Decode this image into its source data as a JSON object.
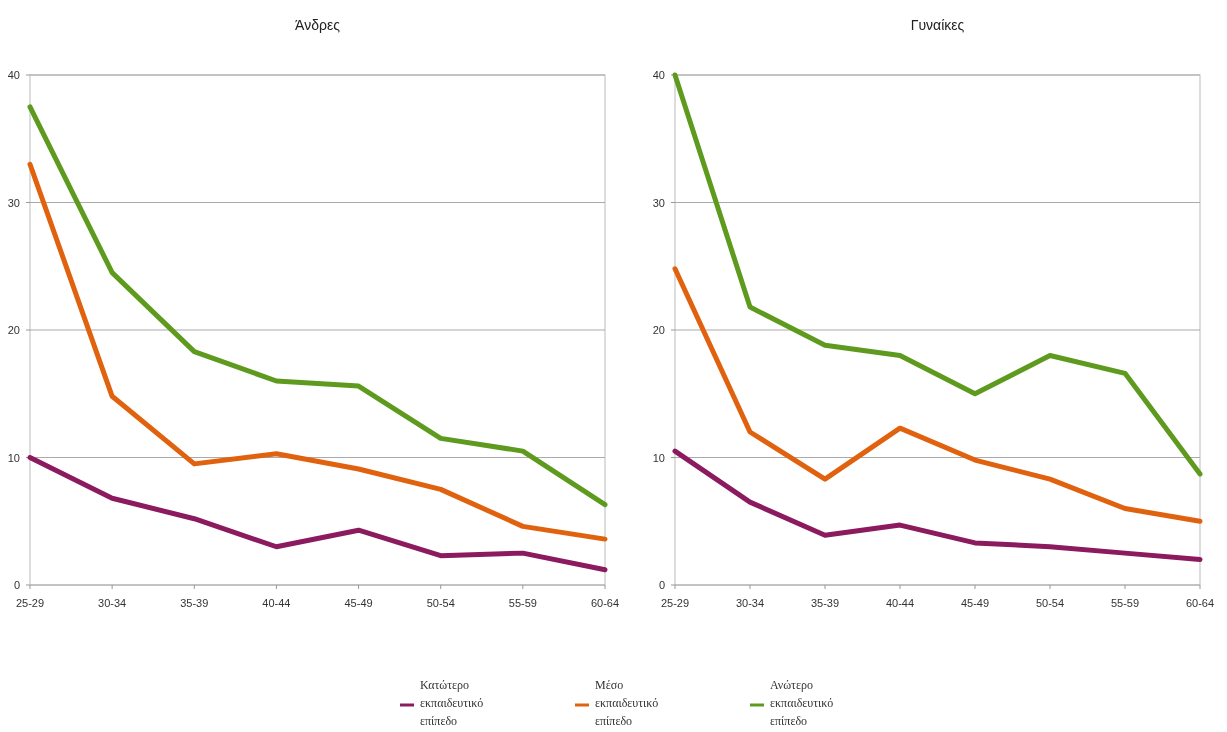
{
  "chart_data": [
    {
      "type": "line",
      "title": "Άνδρες",
      "categories": [
        "25-29",
        "30-34",
        "35-39",
        "40-44",
        "45-49",
        "50-54",
        "55-59",
        "60-64"
      ],
      "ylim": [
        0,
        40
      ],
      "yticks": [
        0,
        10,
        20,
        30,
        40
      ],
      "grid": "y",
      "series": [
        {
          "color": "#8b1a5e",
          "values": [
            10,
            6.8,
            5.2,
            3,
            4.3,
            2.3,
            2.5,
            1.2
          ]
        },
        {
          "color": "#e0620f",
          "values": [
            33,
            14.8,
            9.5,
            10.3,
            9.1,
            7.5,
            4.6,
            3.6
          ]
        },
        {
          "color": "#5e9a1e",
          "values": [
            37.5,
            24.5,
            18.3,
            16,
            15.6,
            11.5,
            10.5,
            6.3
          ]
        }
      ]
    },
    {
      "type": "line",
      "title": "Γυναίκες",
      "categories": [
        "25-29",
        "30-34",
        "35-39",
        "40-44",
        "45-49",
        "50-54",
        "55-59",
        "60-64"
      ],
      "ylim": [
        0,
        40
      ],
      "yticks": [
        0,
        10,
        20,
        30,
        40
      ],
      "grid": "y",
      "legend": "bottom",
      "series": [
        {
          "name": "Κατώτερο εκπαιδευτικό επίπεδο",
          "color": "#8b1a5e",
          "values": [
            10.5,
            6.5,
            3.9,
            4.7,
            3.3,
            3,
            2.5,
            2
          ]
        },
        {
          "name": "Μέσο εκπαιδευτικό επίπεδο",
          "color": "#e0620f",
          "values": [
            24.8,
            12,
            8.3,
            12.3,
            9.8,
            8.3,
            6,
            5
          ]
        },
        {
          "name": "Ανώτερο εκπαιδευτικό επίπεδο",
          "color": "#5e9a1e",
          "values": [
            40,
            21.8,
            18.8,
            18,
            15,
            18,
            16.6,
            8.7
          ]
        }
      ]
    }
  ]
}
